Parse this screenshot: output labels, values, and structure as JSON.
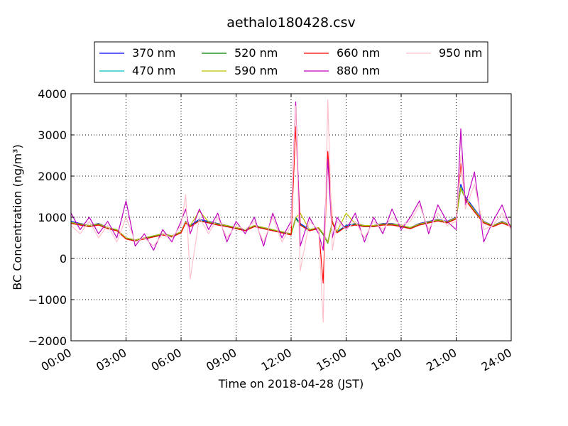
{
  "chart_data": {
    "type": "line",
    "title": "aethalo180428.csv",
    "xlabel": "Time on 2018-04-28 (JST)",
    "ylabel": "BC Concentration (ng/m³)",
    "xlim": [
      0,
      24
    ],
    "ylim": [
      -2000,
      4000
    ],
    "x_ticks": [
      0,
      3,
      6,
      9,
      12,
      15,
      18,
      21,
      24
    ],
    "x_tick_labels": [
      "00:00",
      "03:00",
      "06:00",
      "09:00",
      "12:00",
      "15:00",
      "18:00",
      "21:00",
      "24:00"
    ],
    "y_ticks": [
      -2000,
      -1000,
      0,
      1000,
      2000,
      3000,
      4000
    ],
    "y_tick_labels": [
      "−2000",
      "−1000",
      "0",
      "1000",
      "2000",
      "3000",
      "4000"
    ],
    "grid": true,
    "legend_position": "top",
    "x": [
      0,
      0.5,
      1,
      1.5,
      2,
      2.5,
      3,
      3.5,
      4,
      4.5,
      5,
      5.5,
      6,
      6.25,
      6.5,
      7,
      7.5,
      8,
      8.5,
      9,
      9.5,
      10,
      10.5,
      11,
      11.5,
      12,
      12.25,
      12.5,
      13,
      13.5,
      13.75,
      14,
      14.25,
      14.5,
      15,
      15.5,
      16,
      16.5,
      17,
      17.5,
      18,
      18.5,
      19,
      19.5,
      20,
      20.5,
      21,
      21.25,
      21.5,
      22,
      22.5,
      23,
      23.5,
      24
    ],
    "series": [
      {
        "name": "370 nm",
        "color": "#0000ff",
        "values": [
          900,
          850,
          800,
          850,
          750,
          700,
          500,
          450,
          500,
          550,
          600,
          550,
          650,
          900,
          800,
          950,
          900,
          850,
          800,
          750,
          700,
          800,
          750,
          700,
          650,
          600,
          1000,
          850,
          700,
          750,
          600,
          400,
          900,
          650,
          800,
          850,
          800,
          800,
          850,
          850,
          800,
          750,
          850,
          900,
          950,
          900,
          1000,
          1800,
          1500,
          1200,
          900,
          800,
          900,
          800
        ]
      },
      {
        "name": "470 nm",
        "color": "#00bfbf",
        "values": [
          880,
          830,
          790,
          830,
          740,
          690,
          490,
          440,
          490,
          540,
          590,
          540,
          640,
          880,
          790,
          930,
          880,
          830,
          790,
          740,
          690,
          790,
          740,
          690,
          640,
          590,
          980,
          830,
          690,
          740,
          590,
          380,
          880,
          640,
          790,
          830,
          790,
          790,
          830,
          830,
          790,
          740,
          830,
          880,
          930,
          880,
          980,
          1750,
          1470,
          1180,
          880,
          790,
          880,
          790
        ]
      },
      {
        "name": "520 nm",
        "color": "#008000",
        "values": [
          860,
          820,
          780,
          820,
          730,
          680,
          480,
          430,
          480,
          530,
          580,
          530,
          630,
          870,
          780,
          920,
          870,
          820,
          780,
          730,
          680,
          780,
          730,
          680,
          630,
          580,
          970,
          820,
          680,
          730,
          580,
          370,
          870,
          630,
          780,
          820,
          780,
          780,
          820,
          820,
          780,
          730,
          820,
          870,
          920,
          870,
          970,
          1700,
          1450,
          1150,
          870,
          780,
          870,
          780
        ]
      },
      {
        "name": "590 nm",
        "color": "#bfbf00",
        "values": [
          870,
          840,
          800,
          840,
          750,
          700,
          500,
          450,
          500,
          550,
          600,
          550,
          650,
          890,
          800,
          1150,
          890,
          840,
          800,
          750,
          700,
          800,
          750,
          700,
          650,
          600,
          990,
          1100,
          700,
          750,
          600,
          390,
          890,
          650,
          1100,
          840,
          800,
          800,
          840,
          840,
          800,
          750,
          840,
          890,
          940,
          890,
          990,
          1720,
          1460,
          1170,
          890,
          800,
          890,
          800
        ]
      },
      {
        "name": "660 nm",
        "color": "#ff0000",
        "values": [
          850,
          810,
          770,
          810,
          720,
          670,
          470,
          420,
          470,
          520,
          570,
          520,
          620,
          860,
          770,
          910,
          860,
          810,
          770,
          720,
          670,
          770,
          720,
          670,
          620,
          570,
          3200,
          810,
          670,
          720,
          -600,
          2600,
          860,
          620,
          770,
          810,
          770,
          770,
          810,
          810,
          770,
          720,
          810,
          860,
          910,
          860,
          960,
          2300,
          1420,
          1130,
          860,
          770,
          860,
          770
        ]
      },
      {
        "name": "880 nm",
        "color": "#bf00bf",
        "values": [
          1100,
          700,
          1000,
          600,
          900,
          500,
          1400,
          300,
          600,
          200,
          700,
          400,
          900,
          1200,
          600,
          1200,
          700,
          1100,
          400,
          900,
          600,
          1000,
          300,
          1100,
          500,
          900,
          3800,
          300,
          1000,
          600,
          200,
          2400,
          500,
          1000,
          700,
          1100,
          400,
          1000,
          600,
          1200,
          700,
          1000,
          1400,
          600,
          1300,
          900,
          700,
          3150,
          1300,
          2100,
          400,
          900,
          1300,
          700
        ]
      },
      {
        "name": "950 nm",
        "color": "#ffc0cb",
        "values": [
          800,
          600,
          900,
          500,
          800,
          400,
          1000,
          400,
          500,
          300,
          600,
          500,
          800,
          1550,
          -500,
          1000,
          600,
          1000,
          500,
          800,
          700,
          900,
          400,
          1000,
          400,
          800,
          3700,
          -300,
          900,
          700,
          -1550,
          3850,
          200,
          900,
          700,
          900,
          500,
          900,
          700,
          1000,
          800,
          900,
          1300,
          700,
          1100,
          800,
          900,
          2500,
          1200,
          1800,
          700,
          800,
          1100,
          700
        ]
      }
    ]
  }
}
